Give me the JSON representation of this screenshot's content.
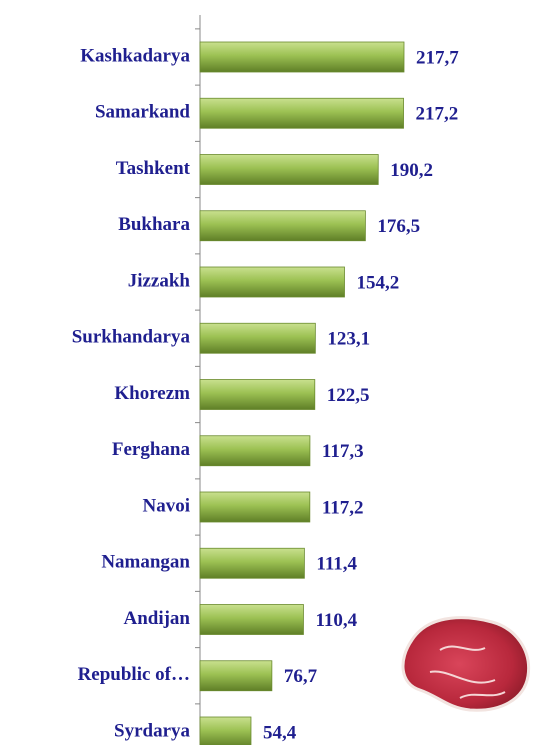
{
  "chart_data": {
    "type": "bar",
    "orientation": "horizontal",
    "categories": [
      "Kashkadarya",
      "Samarkand",
      "Tashkent",
      "Bukhara",
      "Jizzakh",
      "Surkhandarya",
      "Khorezm",
      "Ferghana",
      "Navoi",
      "Namangan",
      "Andijan",
      "Republic of…",
      "Syrdarya"
    ],
    "values": [
      217.7,
      217.2,
      190.2,
      176.5,
      154.2,
      123.1,
      122.5,
      117.3,
      117.2,
      111.4,
      110.4,
      76.7,
      54.4
    ],
    "value_labels": [
      "217,7",
      "217,2",
      "190,2",
      "176,5",
      "154,2",
      "123,1",
      "122,5",
      "117,3",
      "117,2",
      "111,4",
      "110,4",
      "76,7",
      "54,4"
    ],
    "color": "#8db646"
  }
}
